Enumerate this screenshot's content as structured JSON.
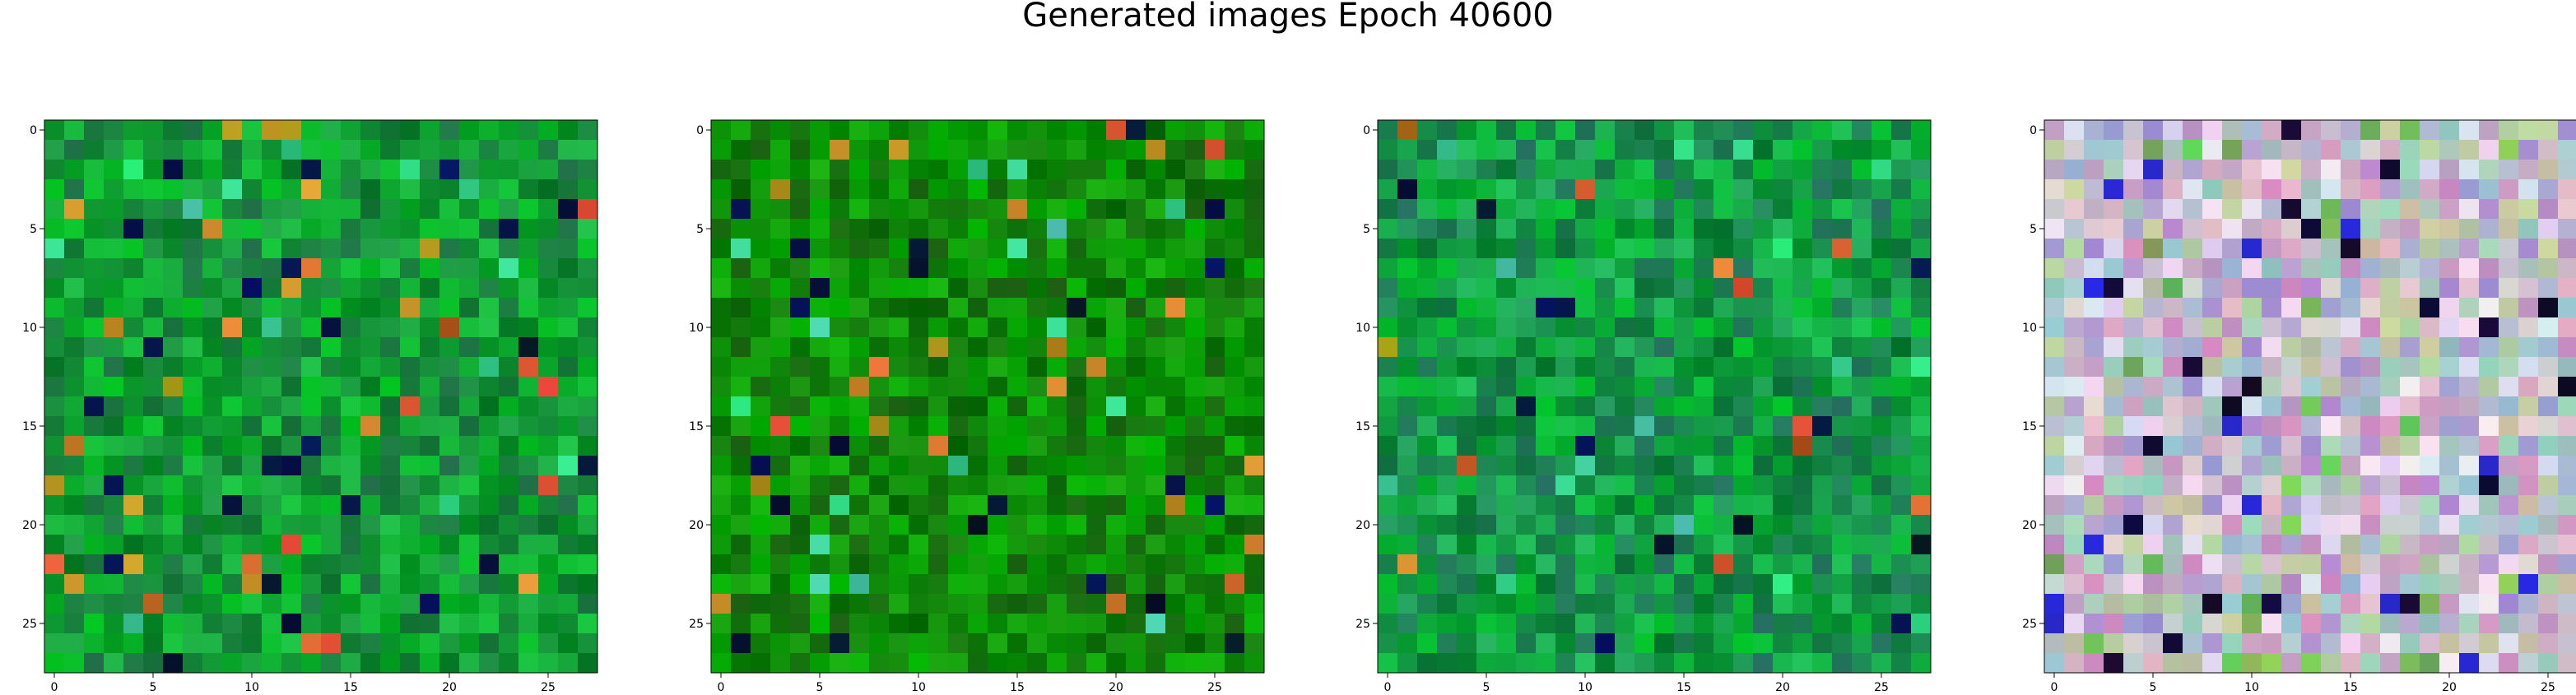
{
  "figure": {
    "title": "Generated images Epoch 40600"
  },
  "chart_data": [
    {
      "type": "heatmap",
      "palette": "green",
      "grid": false,
      "pixel_rows": 28,
      "pixel_cols": 28,
      "xlim": [
        -0.5,
        27.5
      ],
      "ylim": [
        27.5,
        -0.5
      ],
      "xticks": [
        0,
        5,
        10,
        15,
        20,
        25
      ],
      "yticks": [
        0,
        5,
        10,
        15,
        20,
        25
      ],
      "seed": 11
    },
    {
      "type": "heatmap",
      "palette": "darkgreen",
      "grid": false,
      "pixel_rows": 28,
      "pixel_cols": 28,
      "xlim": [
        -0.5,
        27.5
      ],
      "ylim": [
        27.5,
        -0.5
      ],
      "xticks": [
        0,
        5,
        10,
        15,
        20,
        25
      ],
      "yticks": [
        0,
        5,
        10,
        15,
        20,
        25
      ],
      "seed": 23
    },
    {
      "type": "heatmap",
      "palette": "teal",
      "grid": false,
      "pixel_rows": 28,
      "pixel_cols": 28,
      "xlim": [
        -0.5,
        27.5
      ],
      "ylim": [
        27.5,
        -0.5
      ],
      "xticks": [
        0,
        5,
        10,
        15,
        20,
        25
      ],
      "yticks": [
        0,
        5,
        10,
        15,
        20,
        25
      ],
      "seed": 37
    },
    {
      "type": "heatmap",
      "palette": "pastel",
      "grid": false,
      "pixel_rows": 28,
      "pixel_cols": 28,
      "xlim": [
        -0.5,
        27.5
      ],
      "ylim": [
        27.5,
        -0.5
      ],
      "xticks": [
        0,
        5,
        10,
        15,
        20,
        25
      ],
      "yticks": [
        0,
        5,
        10,
        15,
        20,
        25
      ],
      "seed": 53
    }
  ]
}
